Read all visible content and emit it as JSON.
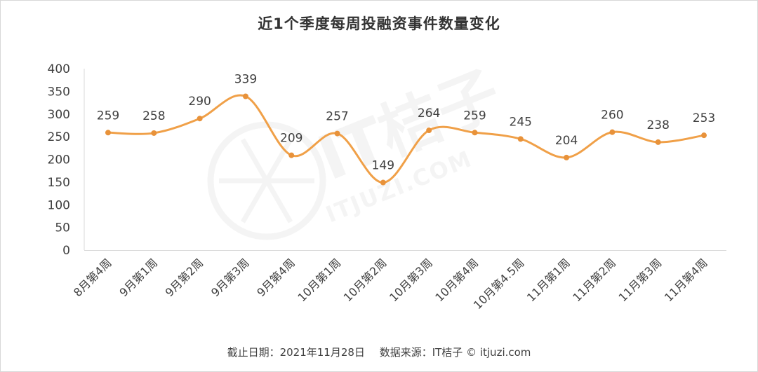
{
  "chart_data": {
    "type": "line",
    "title": "近1个季度每周投融资事件数量变化",
    "categories": [
      "8月第4周",
      "9月第1周",
      "9月第2周",
      "9月第3周",
      "9月第4周",
      "10月第1周",
      "10月第2周",
      "10月第3周",
      "10月第4周",
      "10月第4.5周",
      "11月第1周",
      "11月第2周",
      "11月第3周",
      "11月第4周"
    ],
    "series": [
      {
        "values": [
          259,
          258,
          290,
          339,
          209,
          257,
          149,
          264,
          259,
          245,
          204,
          260,
          238,
          253
        ]
      }
    ],
    "xlabel": "",
    "ylabel": "",
    "ylim": [
      0,
      400
    ],
    "yticks": [
      0,
      50,
      100,
      150,
      200,
      250,
      300,
      350,
      400
    ],
    "grid": false,
    "smooth": true,
    "line_color": "#F0A048",
    "marker_color": "#E8923A",
    "data_labels": true
  },
  "watermark": {
    "brand": "IT桔子",
    "site": "ITJUZI.COM"
  },
  "footer": {
    "cutoff_text": "截止日期：2021年11月28日",
    "source_text": "数据来源：IT桔子 © itjuzi.com"
  }
}
